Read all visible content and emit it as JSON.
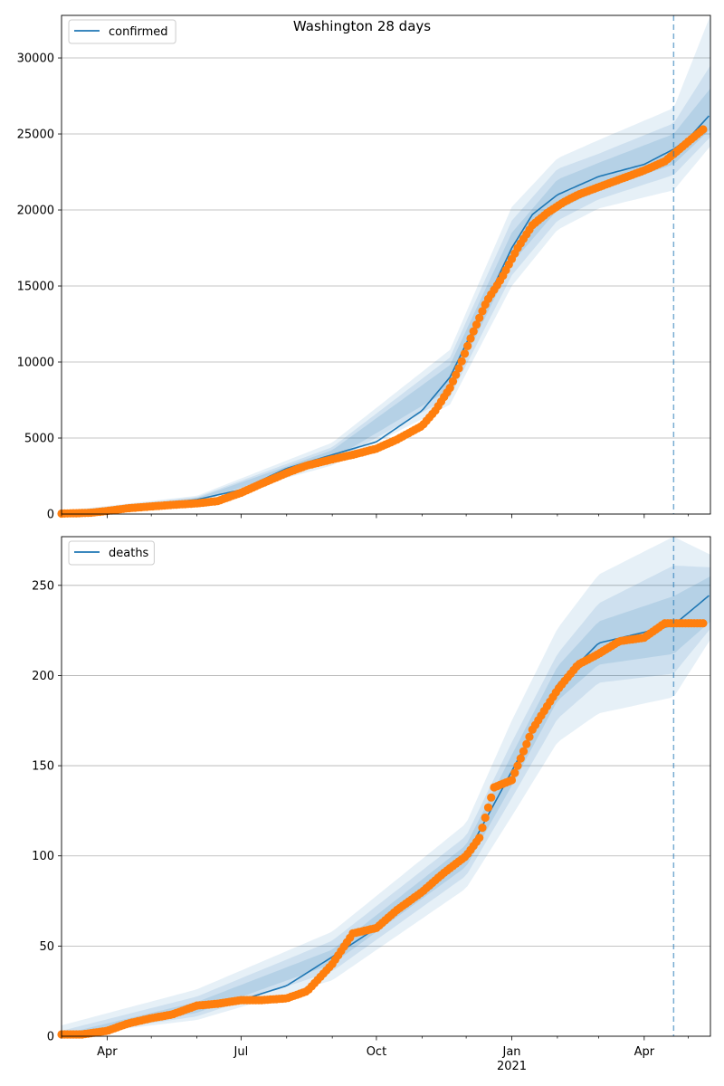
{
  "title": "Washington 28 days",
  "chart_data": [
    {
      "type": "line",
      "legend": {
        "label": "confirmed",
        "location": "upper-left"
      },
      "line_color": "#1f77b4",
      "obs_color": "#ff7f0e",
      "band_color": "#1f77b4",
      "grid": "y",
      "x_axis": {
        "type": "date",
        "range": [
          "2020-03-01",
          "2021-05-16"
        ],
        "tick_labels": [
          "Apr",
          "Jul",
          "Oct",
          "Jan",
          "Apr"
        ],
        "year_label": "2021"
      },
      "ylim": [
        0,
        32800
      ],
      "yticks": [
        "0",
        "5000",
        "10000",
        "15000",
        "20000",
        "25000",
        "30000"
      ],
      "forecast_start": "2021-04-21",
      "model_curve": [
        [
          "2020-03-01",
          40
        ],
        [
          "2020-04-01",
          260
        ],
        [
          "2020-05-01",
          590
        ],
        [
          "2020-06-01",
          950
        ],
        [
          "2020-07-01",
          1600
        ],
        [
          "2020-08-01",
          3000
        ],
        [
          "2020-09-01",
          3900
        ],
        [
          "2020-10-01",
          4750
        ],
        [
          "2020-11-01",
          6800
        ],
        [
          "2020-11-20",
          9000
        ],
        [
          "2020-12-10",
          13000
        ],
        [
          "2021-01-01",
          17500
        ],
        [
          "2021-01-15",
          19700
        ],
        [
          "2021-02-01",
          21000
        ],
        [
          "2021-03-01",
          22200
        ],
        [
          "2021-04-01",
          23000
        ],
        [
          "2021-04-21",
          24000
        ],
        [
          "2021-05-01",
          24700
        ],
        [
          "2021-05-16",
          26300
        ]
      ],
      "band_50": [
        [
          "2020-03-01",
          0,
          100
        ],
        [
          "2020-06-01",
          850,
          1050
        ],
        [
          "2020-09-01",
          3600,
          4200
        ],
        [
          "2020-11-20",
          8200,
          9800
        ],
        [
          "2021-01-01",
          16500,
          18500
        ],
        [
          "2021-02-01",
          20000,
          22000
        ],
        [
          "2021-03-01",
          21300,
          23100
        ],
        [
          "2021-04-21",
          23000,
          25000
        ],
        [
          "2021-05-16",
          25300,
          28000
        ]
      ],
      "band_80": [
        [
          "2020-03-01",
          0,
          150
        ],
        [
          "2020-06-01",
          800,
          1120
        ],
        [
          "2020-09-01",
          3400,
          4400
        ],
        [
          "2020-11-20",
          7700,
          10300
        ],
        [
          "2021-01-01",
          15700,
          19300
        ],
        [
          "2021-02-01",
          19300,
          22700
        ],
        [
          "2021-03-01",
          20700,
          23700
        ],
        [
          "2021-04-21",
          22300,
          25700
        ],
        [
          "2021-05-16",
          24800,
          29500
        ]
      ],
      "band_95": [
        [
          "2020-03-01",
          0,
          200
        ],
        [
          "2020-06-01",
          750,
          1200
        ],
        [
          "2020-09-01",
          3200,
          4700
        ],
        [
          "2020-11-20",
          7200,
          10800
        ],
        [
          "2021-01-01",
          15000,
          20200
        ],
        [
          "2021-02-01",
          18700,
          23400
        ],
        [
          "2021-03-01",
          20100,
          24600
        ],
        [
          "2021-04-21",
          21300,
          26700
        ],
        [
          "2021-05-16",
          24200,
          32800
        ]
      ],
      "observed": [
        [
          "2020-03-01",
          30
        ],
        [
          "2020-03-20",
          80
        ],
        [
          "2020-04-01",
          200
        ],
        [
          "2020-04-15",
          380
        ],
        [
          "2020-05-01",
          500
        ],
        [
          "2020-05-15",
          600
        ],
        [
          "2020-06-01",
          700
        ],
        [
          "2020-06-15",
          850
        ],
        [
          "2020-07-01",
          1400
        ],
        [
          "2020-07-15",
          2000
        ],
        [
          "2020-08-01",
          2700
        ],
        [
          "2020-08-15",
          3200
        ],
        [
          "2020-09-01",
          3600
        ],
        [
          "2020-09-15",
          3900
        ],
        [
          "2020-10-01",
          4300
        ],
        [
          "2020-10-15",
          4900
        ],
        [
          "2020-11-01",
          5800
        ],
        [
          "2020-11-10",
          6800
        ],
        [
          "2020-11-20",
          8300
        ],
        [
          "2020-11-27",
          9800
        ],
        [
          "2020-12-05",
          11800
        ],
        [
          "2020-12-15",
          14000
        ],
        [
          "2020-12-25",
          15500
        ],
        [
          "2021-01-05",
          17500
        ],
        [
          "2021-01-15",
          19000
        ],
        [
          "2021-01-25",
          19800
        ],
        [
          "2021-02-05",
          20500
        ],
        [
          "2021-02-15",
          21000
        ],
        [
          "2021-03-01",
          21500
        ],
        [
          "2021-03-15",
          22000
        ],
        [
          "2021-04-01",
          22600
        ],
        [
          "2021-04-15",
          23200
        ],
        [
          "2021-04-25",
          24000
        ],
        [
          "2021-05-01",
          24500
        ],
        [
          "2021-05-11",
          25300
        ]
      ]
    },
    {
      "type": "line",
      "legend": {
        "label": "deaths",
        "location": "upper-left"
      },
      "line_color": "#1f77b4",
      "obs_color": "#ff7f0e",
      "band_color": "#1f77b4",
      "grid": "y",
      "x_axis": {
        "type": "date",
        "range": [
          "2020-03-01",
          "2021-05-16"
        ],
        "tick_labels": [
          "Apr",
          "Jul",
          "Oct",
          "Jan",
          "Apr"
        ],
        "year_label": "2021"
      },
      "ylim": [
        0,
        277
      ],
      "yticks": [
        "0",
        "50",
        "100",
        "150",
        "200",
        "250"
      ],
      "forecast_start": "2021-04-21",
      "model_curve": [
        [
          "2020-03-01",
          0
        ],
        [
          "2020-04-01",
          4
        ],
        [
          "2020-05-01",
          11
        ],
        [
          "2020-06-01",
          16
        ],
        [
          "2020-07-01",
          20
        ],
        [
          "2020-08-01",
          28
        ],
        [
          "2020-09-01",
          44
        ],
        [
          "2020-10-01",
          60
        ],
        [
          "2020-11-01",
          78
        ],
        [
          "2020-12-01",
          100
        ],
        [
          "2021-01-01",
          147
        ],
        [
          "2021-02-01",
          195
        ],
        [
          "2021-03-01",
          218
        ],
        [
          "2021-04-01",
          224
        ],
        [
          "2021-04-21",
          228
        ],
        [
          "2021-05-16",
          245
        ]
      ],
      "band_50": [
        [
          "2020-03-01",
          0,
          1
        ],
        [
          "2020-06-01",
          13,
          19
        ],
        [
          "2020-09-01",
          40,
          48
        ],
        [
          "2020-12-01",
          94,
          106
        ],
        [
          "2021-01-01",
          139,
          156
        ],
        [
          "2021-02-01",
          186,
          205
        ],
        [
          "2021-03-01",
          206,
          230
        ],
        [
          "2021-04-21",
          212,
          244
        ],
        [
          "2021-05-16",
          230,
          255
        ]
      ],
      "band_80": [
        [
          "2020-03-01",
          0,
          3
        ],
        [
          "2020-06-01",
          11,
          22
        ],
        [
          "2020-09-01",
          36,
          53
        ],
        [
          "2020-12-01",
          89,
          111
        ],
        [
          "2021-01-01",
          132,
          163
        ],
        [
          "2021-02-01",
          176,
          212
        ],
        [
          "2021-03-01",
          196,
          240
        ],
        [
          "2021-04-21",
          201,
          261
        ],
        [
          "2021-05-16",
          226,
          260
        ]
      ],
      "band_95": [
        [
          "2020-03-01",
          0,
          6
        ],
        [
          "2020-06-01",
          9,
          26
        ],
        [
          "2020-09-01",
          31,
          58
        ],
        [
          "2020-12-01",
          82,
          118
        ],
        [
          "2021-01-01",
          122,
          175
        ],
        [
          "2021-02-01",
          163,
          226
        ],
        [
          "2021-03-01",
          179,
          256
        ],
        [
          "2021-04-21",
          188,
          277
        ],
        [
          "2021-05-16",
          220,
          267
        ]
      ],
      "observed": [
        [
          "2020-03-01",
          1
        ],
        [
          "2020-03-15",
          1
        ],
        [
          "2020-04-01",
          3
        ],
        [
          "2020-04-15",
          7
        ],
        [
          "2020-05-01",
          10
        ],
        [
          "2020-05-15",
          12
        ],
        [
          "2020-06-01",
          17
        ],
        [
          "2020-06-15",
          18
        ],
        [
          "2020-07-01",
          20
        ],
        [
          "2020-07-15",
          20
        ],
        [
          "2020-08-01",
          21
        ],
        [
          "2020-08-15",
          25
        ],
        [
          "2020-09-01",
          40
        ],
        [
          "2020-09-15",
          57
        ],
        [
          "2020-10-01",
          60
        ],
        [
          "2020-10-15",
          70
        ],
        [
          "2020-11-01",
          80
        ],
        [
          "2020-11-15",
          90
        ],
        [
          "2020-12-01",
          100
        ],
        [
          "2020-12-10",
          110
        ],
        [
          "2020-12-20",
          138
        ],
        [
          "2021-01-01",
          142
        ],
        [
          "2021-01-15",
          170
        ],
        [
          "2021-02-01",
          192
        ],
        [
          "2021-02-15",
          206
        ],
        [
          "2021-03-01",
          212
        ],
        [
          "2021-03-15",
          219
        ],
        [
          "2021-04-01",
          221
        ],
        [
          "2021-04-15",
          229
        ],
        [
          "2021-04-25",
          229
        ],
        [
          "2021-05-05",
          229
        ],
        [
          "2021-05-11",
          229
        ]
      ]
    }
  ]
}
